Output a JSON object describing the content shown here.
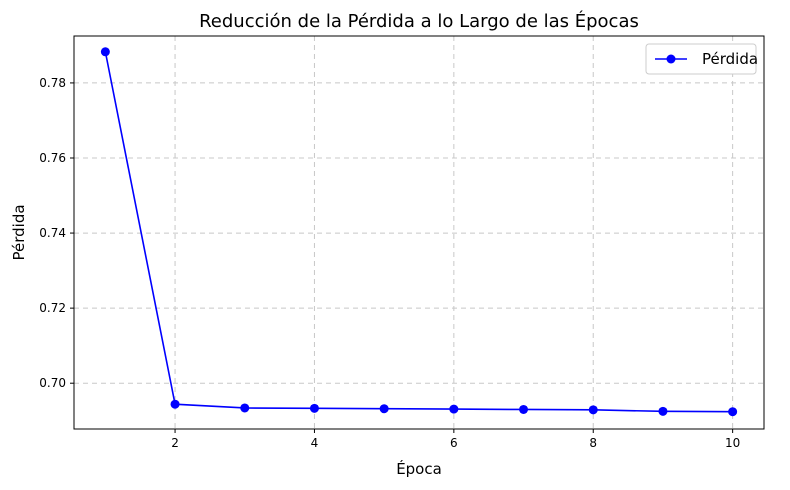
{
  "chart_data": {
    "type": "line",
    "title": "Reducción de la Pérdida a lo Largo de las Épocas",
    "xlabel": "Época",
    "ylabel": "Pérdida",
    "xlim": [
      0.55,
      10.45
    ],
    "ylim": [
      0.6878,
      0.7925
    ],
    "xticks": [
      2,
      4,
      6,
      8,
      10
    ],
    "yticks": [
      0.7,
      0.72,
      0.74,
      0.76,
      0.78
    ],
    "xtick_labels": [
      "2",
      "4",
      "6",
      "8",
      "10"
    ],
    "ytick_labels": [
      "0.70",
      "0.72",
      "0.74",
      "0.76",
      "0.78"
    ],
    "grid": true,
    "legend_position": "top-right",
    "series": [
      {
        "name": "Pérdida",
        "color": "#0000ff",
        "marker": "circle",
        "x": [
          1,
          2,
          3,
          4,
          5,
          6,
          7,
          8,
          9,
          10
        ],
        "y": [
          0.7883,
          0.6944,
          0.6934,
          0.6933,
          0.6932,
          0.6931,
          0.693,
          0.6929,
          0.6925,
          0.6924
        ]
      }
    ]
  }
}
